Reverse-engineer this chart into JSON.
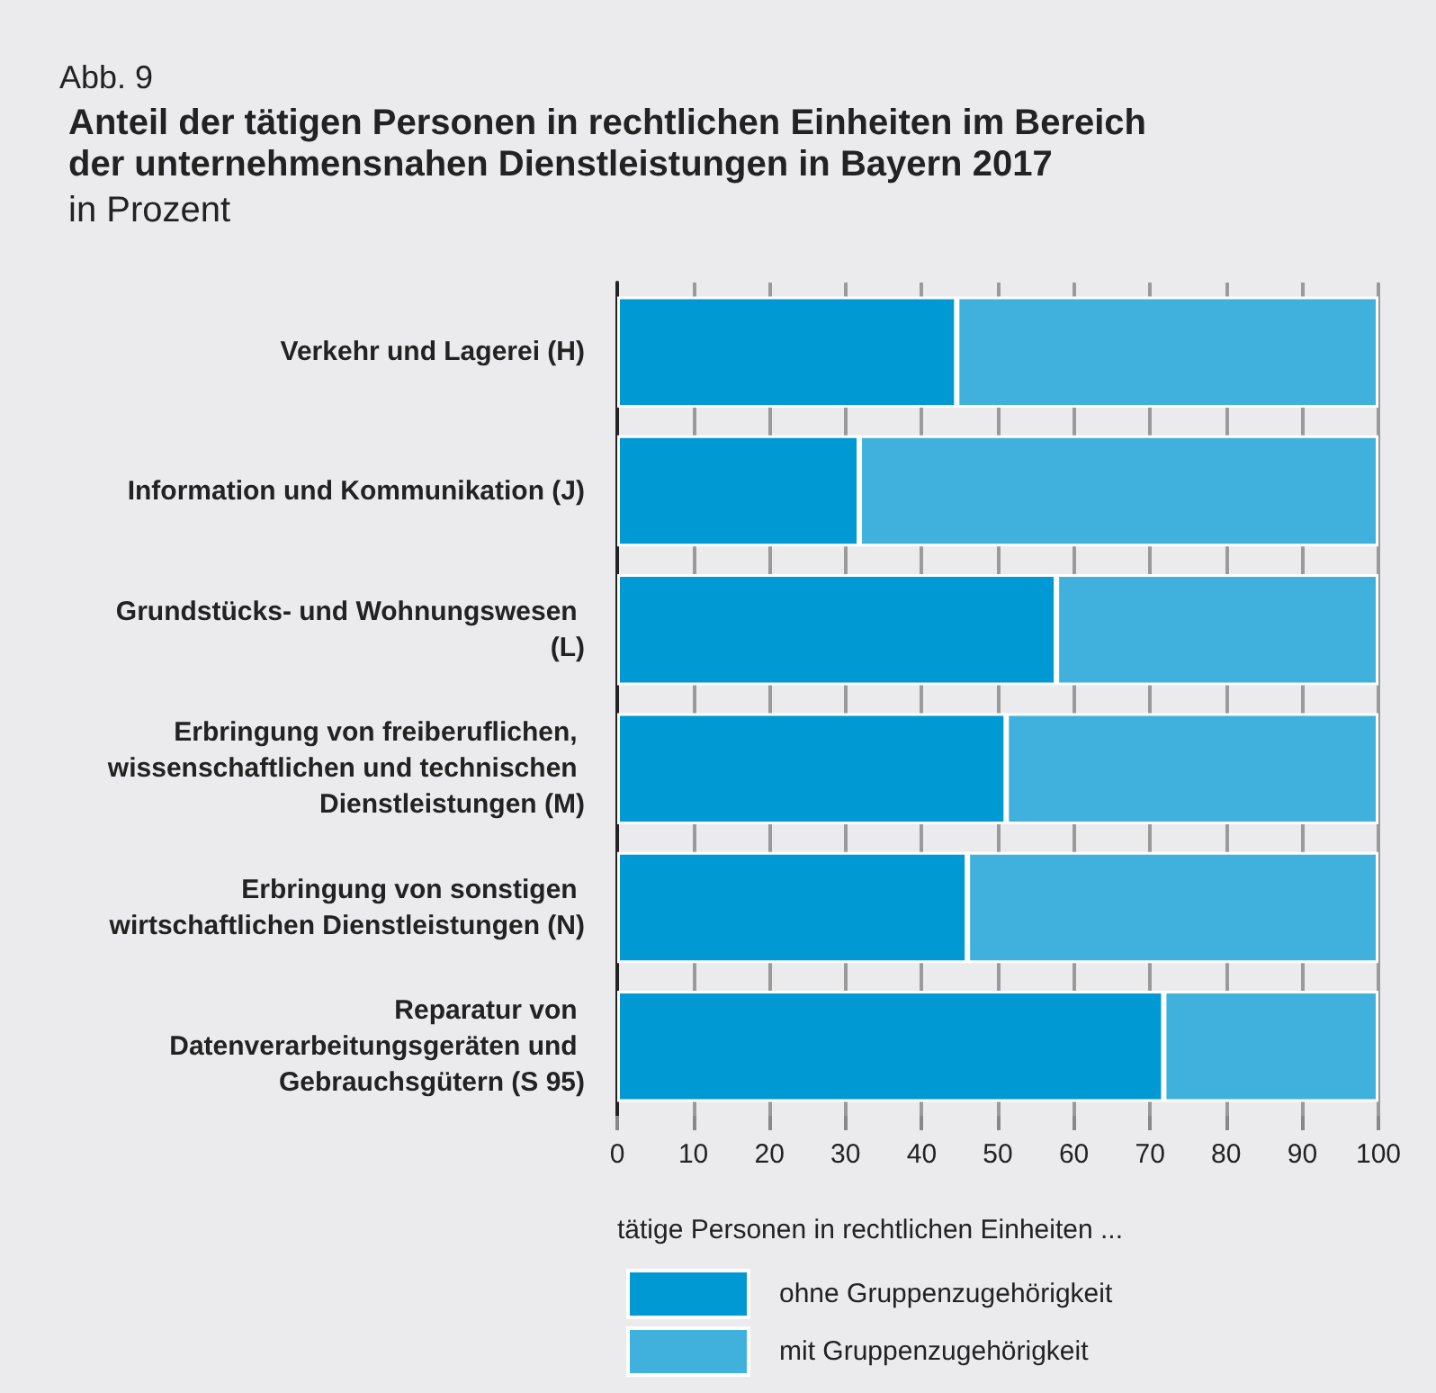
{
  "chart_data": {
    "type": "bar",
    "orientation": "horizontal",
    "stacked": true,
    "title": "Anteil der tätigen Personen in rechtlichen Einheiten im Bereich der unternehmensnahen Dienstleistungen in Bayern 2017",
    "subtitle": "in Prozent",
    "annotations": [
      "Abb. 9"
    ],
    "categories": [
      "Verkehr und Lagerei (H)",
      "Information und Kommunikation (J)",
      "Grundstücks- und Wohnungswesen (L)",
      "Erbringung von freiberuflichen, wissenschaftlichen und technischen Dienstleistungen (M)",
      "Erbringung von sonstigen wirtschaftlichen Dienstleistungen (N)",
      "Reparatur von Datenverarbeitungsgeräten und Gebrauchsgütern (S 95)"
    ],
    "series": [
      {
        "name": "ohne Gruppenzugehörigkeit",
        "color": "#0099d4",
        "values": [
          44.6,
          31.8,
          57.7,
          51.1,
          46.0,
          71.8
        ]
      },
      {
        "name": "mit Gruppenzugehörigkeit",
        "color": "#3fb1dc",
        "values": [
          55.4,
          68.2,
          42.3,
          48.9,
          54.0,
          28.2
        ]
      }
    ],
    "legend_title": "tätige Personen in rechtlichen Einheiten ...",
    "legend": "bottom",
    "xlim": [
      0,
      100
    ],
    "xticks": [
      0,
      10,
      20,
      30,
      40,
      50,
      60,
      70,
      80,
      90,
      100
    ],
    "grid": "x"
  }
}
